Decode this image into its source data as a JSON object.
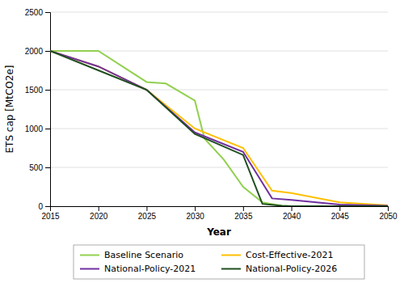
{
  "chart_data": {
    "type": "line",
    "xlabel": "Year",
    "ylabel": "ETS cap [MtCO2e]",
    "series": [
      {
        "name": "Baseline Scenario",
        "color": "#92D050",
        "x": [
          2015,
          2020,
          2025,
          2027,
          2030,
          2031,
          2033,
          2035,
          2037,
          2039,
          2040,
          2045,
          2050
        ],
        "values": [
          2000,
          2000,
          1600,
          1580,
          1360,
          870,
          600,
          250,
          50,
          5,
          0,
          0,
          0
        ]
      },
      {
        "name": "Cost-Effective-2021",
        "color": "#FFC000",
        "x": [
          2015,
          2020,
          2025,
          2030,
          2035,
          2038,
          2040,
          2045,
          2050
        ],
        "values": [
          2000,
          1800,
          1500,
          1000,
          750,
          200,
          170,
          50,
          10
        ]
      },
      {
        "name": "National-Policy-2021",
        "color": "#7030A0",
        "x": [
          2015,
          2020,
          2025,
          2030,
          2035,
          2038,
          2040,
          2045,
          2050
        ],
        "values": [
          2000,
          1800,
          1500,
          950,
          700,
          100,
          80,
          20,
          5
        ]
      },
      {
        "name": "National-Policy-2026",
        "color": "#1F4E1F",
        "x": [
          2015,
          2020,
          2025,
          2030,
          2035,
          2037,
          2039,
          2040,
          2045,
          2050
        ],
        "values": [
          2000,
          1750,
          1500,
          930,
          660,
          30,
          5,
          0,
          0,
          0
        ]
      }
    ],
    "xlim": [
      2015,
      2050
    ],
    "ylim": [
      0,
      2500
    ],
    "xticks": [
      2015,
      2020,
      2025,
      2030,
      2035,
      2040,
      2045,
      2050
    ],
    "yticks": [
      0,
      500,
      1000,
      1500,
      2000,
      2500
    ],
    "grid": "y",
    "legend": "bottom"
  }
}
